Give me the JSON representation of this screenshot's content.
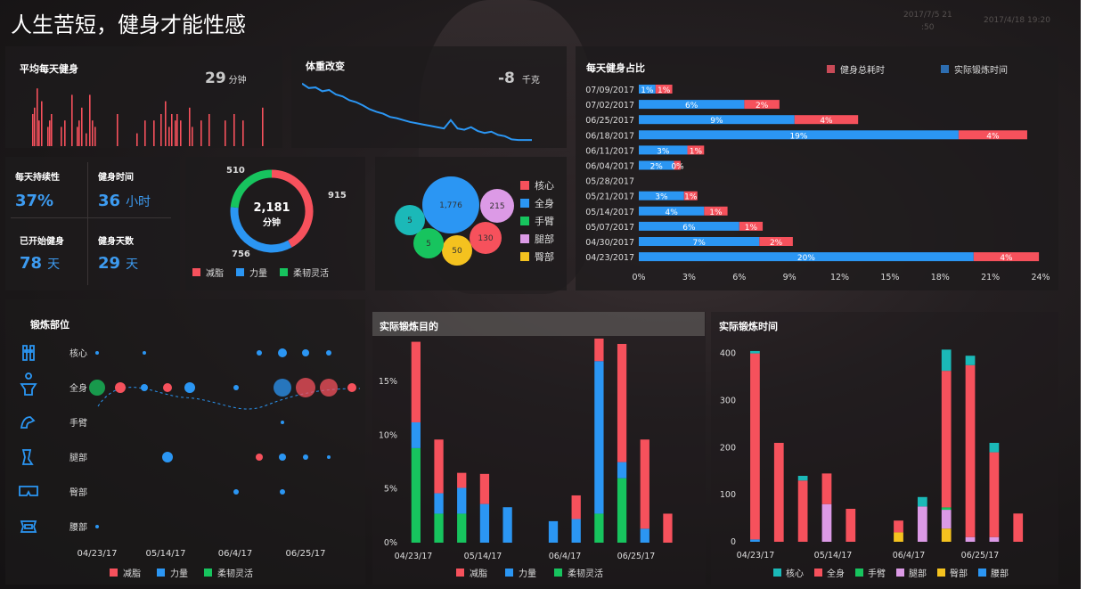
{
  "header": {
    "title": "人生苦短，健身才能性感",
    "timestamp_a": "2017/7/5 21",
    "timestamp_a2": ":50",
    "timestamp_b": "2017/4/18 19:20"
  },
  "colors": {
    "red": "#f6515c",
    "blue": "#2b96f3",
    "green": "#17c45e",
    "teal": "#1bb9b8",
    "pink": "#dc9ae6",
    "yellow": "#f4c21f"
  },
  "daily_exercise": {
    "title": "平均每天健身",
    "value": "29",
    "unit": "分钟",
    "bars": [
      0.5,
      0.6,
      0.9,
      0.4,
      0.7,
      0.3,
      0.4,
      0.5,
      0.3,
      0.4,
      0.8,
      0.3,
      0.4,
      0.6,
      0.2,
      0.8,
      0.4,
      0.3,
      0.5,
      0.2,
      0.4,
      0.4,
      0.5,
      0.7,
      0.3,
      0.5,
      0.4,
      0.5,
      0.4,
      0.6,
      0.3,
      0.4,
      0.5,
      0.4,
      0.5,
      0.4,
      0.6
    ]
  },
  "weight": {
    "title": "体重改变",
    "value": "-8",
    "unit": "千克",
    "line": [
      0.92,
      0.85,
      0.86,
      0.8,
      0.82,
      0.75,
      0.72,
      0.66,
      0.63,
      0.58,
      0.52,
      0.48,
      0.45,
      0.4,
      0.38,
      0.35,
      0.32,
      0.3,
      0.28,
      0.26,
      0.24,
      0.22,
      0.35,
      0.22,
      0.2,
      0.24,
      0.18,
      0.15,
      0.17,
      0.12,
      0.1,
      0.05,
      0.04,
      0.04,
      0.04
    ]
  },
  "stats": [
    {
      "label": "每天持续性",
      "value": "37%",
      "unit": ""
    },
    {
      "label": "健身时间",
      "value": "36",
      "unit": "小时"
    },
    {
      "label": "已开始健身",
      "value": "78",
      "unit": "天"
    },
    {
      "label": "健身天数",
      "value": "29",
      "unit": "天"
    }
  ],
  "donut": {
    "center_value": "2,181",
    "center_unit": "分钟",
    "segments": [
      {
        "label": "减脂",
        "value": 915,
        "display": "915",
        "color": "#f6515c"
      },
      {
        "label": "力量",
        "value": 756,
        "display": "756",
        "color": "#2b96f3"
      },
      {
        "label": "柔韧灵活",
        "value": 510,
        "display": "510",
        "color": "#17c45e"
      }
    ]
  },
  "bubbles": {
    "items": [
      {
        "label": "全身",
        "display": "1,776",
        "color": "#2b96f3"
      },
      {
        "label": "腿部",
        "display": "215",
        "color": "#dc9ae6"
      },
      {
        "label": "核心",
        "display": "130",
        "color": "#f6515c"
      },
      {
        "label": "臀部",
        "display": "50",
        "color": "#f4c21f"
      },
      {
        "label": "手臂",
        "display": "5",
        "color": "#17c45e"
      },
      {
        "label": "",
        "display": "5",
        "color": "#1bb9b8"
      }
    ],
    "legend": [
      {
        "label": "核心",
        "color": "#f6515c"
      },
      {
        "label": "全身",
        "color": "#2b96f3"
      },
      {
        "label": "手臂",
        "color": "#17c45e"
      },
      {
        "label": "腿部",
        "color": "#dc9ae6"
      },
      {
        "label": "臀部",
        "color": "#f4c21f"
      }
    ]
  },
  "ratio_chart": {
    "title": "每天健身占比",
    "legend": [
      {
        "label": "健身总耗时",
        "color": "#c84a57"
      },
      {
        "label": "实际锻炼时间",
        "color": "#2d6db0"
      }
    ],
    "xticks": [
      "0%",
      "3%",
      "6%",
      "9%",
      "12%",
      "15%",
      "18%",
      "21%",
      "24%"
    ],
    "rows": [
      {
        "date": "07/09/2017",
        "blue": 1,
        "red": 1,
        "bl": "1%",
        "rl": "1%"
      },
      {
        "date": "07/02/2017",
        "blue": 6.3,
        "red": 2.1,
        "bl": "6%",
        "rl": "2%"
      },
      {
        "date": "06/25/2017",
        "blue": 9.3,
        "red": 3.8,
        "bl": "9%",
        "rl": "4%"
      },
      {
        "date": "06/18/2017",
        "blue": 19.1,
        "red": 4.1,
        "bl": "19%",
        "rl": "4%"
      },
      {
        "date": "06/11/2017",
        "blue": 2.9,
        "red": 1.0,
        "bl": "3%",
        "rl": "1%"
      },
      {
        "date": "06/04/2017",
        "blue": 2.1,
        "red": 0.4,
        "bl": "2%",
        "rl": "0%"
      },
      {
        "date": "05/28/2017",
        "blue": 0,
        "red": 0,
        "bl": "",
        "rl": ""
      },
      {
        "date": "05/21/2017",
        "blue": 2.7,
        "red": 0.8,
        "bl": "3%",
        "rl": "1%"
      },
      {
        "date": "05/14/2017",
        "blue": 3.9,
        "red": 1.4,
        "bl": "4%",
        "rl": "1%"
      },
      {
        "date": "05/07/2017",
        "blue": 6.0,
        "red": 1.4,
        "bl": "6%",
        "rl": "1%"
      },
      {
        "date": "04/30/2017",
        "blue": 7.2,
        "red": 2.0,
        "bl": "7%",
        "rl": "2%"
      },
      {
        "date": "04/23/2017",
        "blue": 20.0,
        "red": 3.9,
        "bl": "20%",
        "rl": "4%"
      }
    ]
  },
  "body_parts": {
    "title": "锻炼部位",
    "rows": [
      "核心",
      "全身",
      "手臂",
      "腿部",
      "臀部",
      "腰部"
    ],
    "row_icons": [
      "core-icon",
      "fullbody-icon",
      "arm-icon",
      "leg-icon",
      "hip-icon",
      "waist-icon"
    ],
    "xticks": [
      "04/23/17",
      "05/14/17",
      "06/4/17",
      "06/25/17"
    ],
    "dots": [
      {
        "row": 0,
        "col": 0,
        "r": 2,
        "c": "#2b96f3"
      },
      {
        "row": 0,
        "col": 2,
        "r": 2,
        "c": "#2b96f3"
      },
      {
        "row": 0,
        "col": 7,
        "r": 3,
        "c": "#2b96f3"
      },
      {
        "row": 0,
        "col": 8,
        "r": 5,
        "c": "#2b96f3"
      },
      {
        "row": 0,
        "col": 9,
        "r": 4,
        "c": "#2b96f3"
      },
      {
        "row": 0,
        "col": 10,
        "r": 3,
        "c": "#2b96f3"
      },
      {
        "row": 1,
        "col": 0,
        "r": 9,
        "c": "#17c45e"
      },
      {
        "row": 1,
        "col": 1,
        "r": 6,
        "c": "#f6515c"
      },
      {
        "row": 1,
        "col": 2,
        "r": 4,
        "c": "#2b96f3"
      },
      {
        "row": 1,
        "col": 3,
        "r": 5,
        "c": "#f6515c"
      },
      {
        "row": 1,
        "col": 4,
        "r": 6,
        "c": "#2b96f3"
      },
      {
        "row": 1,
        "col": 6,
        "r": 3,
        "c": "#2b96f3"
      },
      {
        "row": 1,
        "col": 8,
        "r": 10,
        "c": "#2b96f3"
      },
      {
        "row": 1,
        "col": 9,
        "r": 11,
        "c": "#f6515c"
      },
      {
        "row": 1,
        "col": 10,
        "r": 10,
        "c": "#f6515c"
      },
      {
        "row": 1,
        "col": 11,
        "r": 5,
        "c": "#f6515c"
      },
      {
        "row": 2,
        "col": 8,
        "r": 2,
        "c": "#2b96f3"
      },
      {
        "row": 3,
        "col": 3,
        "r": 6,
        "c": "#2b96f3"
      },
      {
        "row": 3,
        "col": 7,
        "r": 4,
        "c": "#f6515c"
      },
      {
        "row": 3,
        "col": 8,
        "r": 4,
        "c": "#2b96f3"
      },
      {
        "row": 3,
        "col": 9,
        "r": 3,
        "c": "#2b96f3"
      },
      {
        "row": 3,
        "col": 10,
        "r": 2,
        "c": "#2b96f3"
      },
      {
        "row": 4,
        "col": 6,
        "r": 3,
        "c": "#2b96f3"
      },
      {
        "row": 4,
        "col": 8,
        "r": 3,
        "c": "#2b96f3"
      },
      {
        "row": 5,
        "col": 0,
        "r": 2,
        "c": "#2b96f3"
      }
    ],
    "legend": [
      {
        "label": "减脂",
        "color": "#f6515c"
      },
      {
        "label": "力量",
        "color": "#2b96f3"
      },
      {
        "label": "柔韧灵活",
        "color": "#17c45e"
      }
    ]
  },
  "chart_data": [
    {
      "type": "bar",
      "title": "实际锻炼目的",
      "categories": [
        "04/23/17",
        "",
        "",
        "",
        "05/14/17",
        "",
        "",
        "06/4/17",
        "",
        "",
        "06/25/17",
        "",
        ""
      ],
      "xticks": [
        "04/23/17",
        "05/14/17",
        "06/4/17",
        "06/25/17"
      ],
      "yticks": [
        "0%",
        "5%",
        "10%",
        "15%"
      ],
      "ylim": [
        0,
        18
      ],
      "series": [
        {
          "name": "柔韧灵活",
          "color": "#17c45e",
          "values": [
            8.8,
            2.7,
            2.7,
            0,
            0,
            0,
            0,
            0,
            2.7,
            6.0,
            0,
            0,
            0
          ]
        },
        {
          "name": "力量",
          "color": "#2b96f3",
          "values": [
            2.4,
            1.9,
            2.4,
            3.6,
            3.3,
            0,
            2.0,
            2.2,
            14.2,
            1.5,
            1.3,
            0,
            0
          ]
        },
        {
          "name": "减脂",
          "color": "#f6515c",
          "values": [
            7.5,
            5.0,
            1.4,
            2.8,
            0,
            0,
            0,
            2.2,
            2.1,
            11.0,
            8.3,
            2.7,
            0
          ]
        }
      ],
      "legend": [
        {
          "label": "减脂",
          "color": "#f6515c"
        },
        {
          "label": "力量",
          "color": "#2b96f3"
        },
        {
          "label": "柔韧灵活",
          "color": "#17c45e"
        }
      ]
    },
    {
      "type": "bar",
      "title": "实际锻炼时间",
      "categories": [
        "04/23/17",
        "",
        "",
        "",
        "05/14/17",
        "",
        "",
        "06/4/17",
        "",
        "",
        "06/25/17",
        "",
        ""
      ],
      "xticks": [
        "04/23/17",
        "05/14/17",
        "06/4/17",
        "06/25/17"
      ],
      "yticks": [
        "0",
        "100",
        "200",
        "300",
        "400"
      ],
      "ylim": [
        0,
        420
      ],
      "series": [
        {
          "name": "腰部",
          "color": "#2b96f3",
          "values": [
            5,
            0,
            0,
            0,
            0,
            0,
            0,
            0,
            0,
            0,
            0,
            0,
            0
          ]
        },
        {
          "name": "臀部",
          "color": "#f4c21f",
          "values": [
            0,
            0,
            0,
            0,
            0,
            0,
            20,
            0,
            28,
            0,
            0,
            0,
            0
          ]
        },
        {
          "name": "腿部",
          "color": "#dc9ae6",
          "values": [
            0,
            0,
            0,
            80,
            0,
            0,
            0,
            75,
            40,
            10,
            10,
            0,
            0
          ]
        },
        {
          "name": "手臂",
          "color": "#17c45e",
          "values": [
            0,
            0,
            0,
            0,
            0,
            0,
            0,
            0,
            5,
            0,
            0,
            0,
            0
          ]
        },
        {
          "name": "全身",
          "color": "#f6515c",
          "values": [
            395,
            210,
            130,
            65,
            70,
            0,
            25,
            0,
            290,
            365,
            180,
            60,
            0
          ]
        },
        {
          "name": "核心",
          "color": "#1bb9b8",
          "values": [
            5,
            0,
            10,
            0,
            0,
            0,
            0,
            20,
            45,
            20,
            20,
            0,
            0
          ]
        }
      ],
      "legend": [
        {
          "label": "核心",
          "color": "#1bb9b8"
        },
        {
          "label": "全身",
          "color": "#f6515c"
        },
        {
          "label": "手臂",
          "color": "#17c45e"
        },
        {
          "label": "腿部",
          "color": "#dc9ae6"
        },
        {
          "label": "臀部",
          "color": "#f4c21f"
        },
        {
          "label": "腰部",
          "color": "#2b96f3"
        }
      ]
    }
  ]
}
